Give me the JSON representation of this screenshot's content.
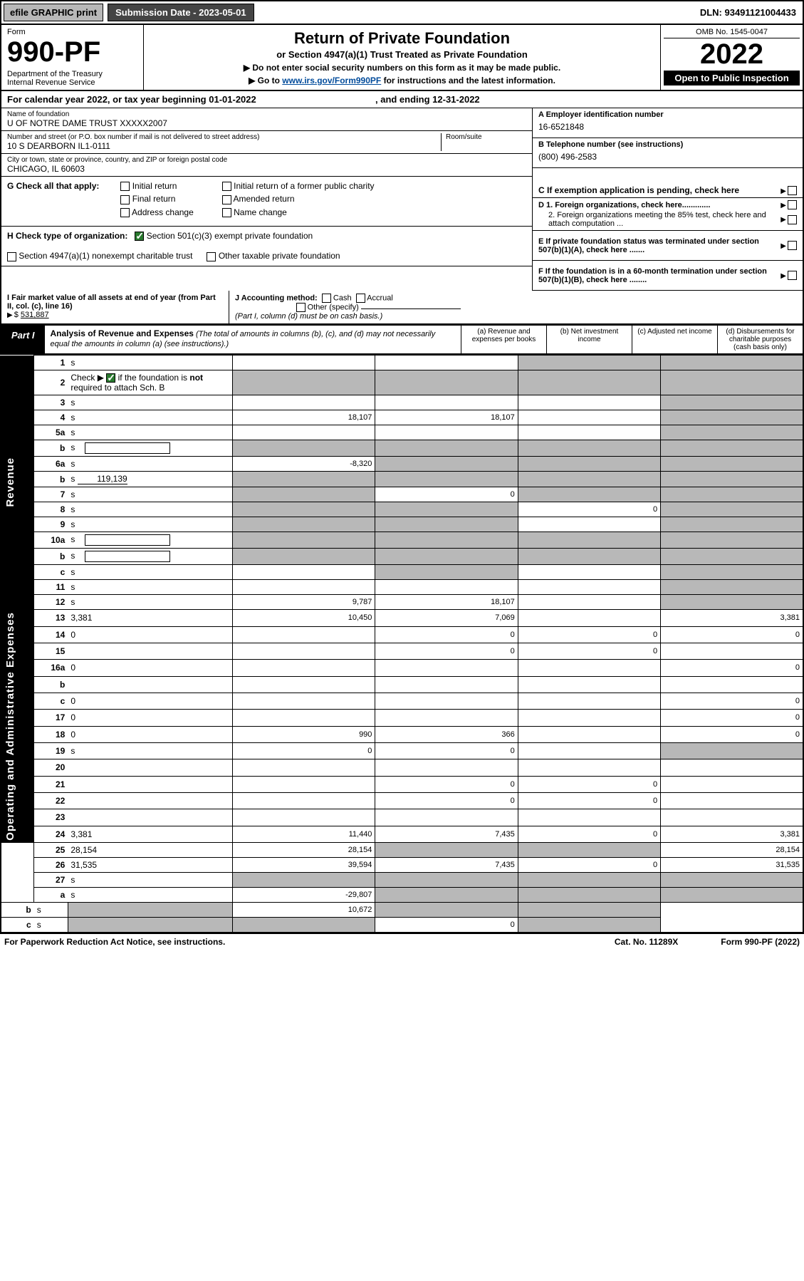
{
  "topbar": {
    "efile": "efile GRAPHIC print",
    "submission": "Submission Date - 2023-05-01",
    "dln": "DLN: 93491121004433"
  },
  "header": {
    "form_label": "Form",
    "form_number": "990-PF",
    "dept": "Department of the Treasury\nInternal Revenue Service",
    "title": "Return of Private Foundation",
    "subtitle": "or Section 4947(a)(1) Trust Treated as Private Foundation",
    "instr1": "▶ Do not enter social security numbers on this form as it may be made public.",
    "instr2_pre": "▶ Go to ",
    "instr2_link": "www.irs.gov/Form990PF",
    "instr2_post": " for instructions and the latest information.",
    "omb": "OMB No. 1545-0047",
    "year": "2022",
    "open": "Open to Public Inspection"
  },
  "calendar": {
    "text_pre": "For calendar year 2022, or tax year beginning ",
    "begin": "01-01-2022",
    "text_mid": " , and ending ",
    "end": "12-31-2022"
  },
  "entity": {
    "name_lbl": "Name of foundation",
    "name": "U OF NOTRE DAME TRUST XXXXX2007",
    "addr_lbl": "Number and street (or P.O. box number if mail is not delivered to street address)",
    "addr": "10 S DEARBORN IL1-0111",
    "room_lbl": "Room/suite",
    "city_lbl": "City or town, state or province, country, and ZIP or foreign postal code",
    "city": "CHICAGO, IL  60603",
    "ein_lbl": "A Employer identification number",
    "ein": "16-6521848",
    "tel_lbl": "B Telephone number (see instructions)",
    "tel": "(800) 496-2583",
    "c_lbl": "C If exemption application is pending, check here",
    "d1": "D 1. Foreign organizations, check here.............",
    "d2": "2. Foreign organizations meeting the 85% test, check here and attach computation ...",
    "e_lbl": "E   If private foundation status was terminated under section 507(b)(1)(A), check here .......",
    "f_lbl": "F   If the foundation is in a 60-month termination under section 507(b)(1)(B), check here ........"
  },
  "checks": {
    "g_lbl": "G Check all that apply:",
    "g_opts": [
      "Initial return",
      "Final return",
      "Address change",
      "Initial return of a former public charity",
      "Amended return",
      "Name change"
    ],
    "h_lbl": "H Check type of organization:",
    "h_opts": [
      "Section 501(c)(3) exempt private foundation",
      "Section 4947(a)(1) nonexempt charitable trust",
      "Other taxable private foundation"
    ],
    "i_lbl": "I Fair market value of all assets at end of year (from Part II, col. (c), line 16)",
    "i_val": "531,887",
    "j_lbl": "J Accounting method:",
    "j_opts": [
      "Cash",
      "Accrual",
      "Other (specify)"
    ],
    "j_note": "(Part I, column (d) must be on cash basis.)"
  },
  "part1": {
    "label": "Part I",
    "title": "Analysis of Revenue and Expenses",
    "note": " (The total of amounts in columns (b), (c), and (d) may not necessarily equal the amounts in column (a) (see instructions).)",
    "col_a": "(a)   Revenue and expenses per books",
    "col_b": "(b)   Net investment income",
    "col_c": "(c)   Adjusted net income",
    "col_d": "(d)   Disbursements for charitable purposes (cash basis only)"
  },
  "rows": [
    {
      "n": "1",
      "d": "s",
      "a": "",
      "b": "",
      "c": "s"
    },
    {
      "n": "2",
      "d_html": "Check ▶ [X] if the foundation is <b>not</b> required to attach Sch. B",
      "a": "s",
      "b": "s",
      "c": "s",
      "d": "s"
    },
    {
      "n": "3",
      "d": "s",
      "a": "",
      "b": "",
      "c": ""
    },
    {
      "n": "4",
      "d": "s",
      "a": "18,107",
      "b": "18,107",
      "c": ""
    },
    {
      "n": "5a",
      "d": "s",
      "a": "",
      "b": "",
      "c": ""
    },
    {
      "n": "b",
      "d": "s",
      "a": "s",
      "b": "s",
      "c": "s",
      "inset": true
    },
    {
      "n": "6a",
      "d": "s",
      "a": "-8,320",
      "b": "s",
      "c": "s"
    },
    {
      "n": "b",
      "d": "s",
      "inline_val": "119,139",
      "a": "s",
      "b": "s",
      "c": "s"
    },
    {
      "n": "7",
      "d": "s",
      "a": "s",
      "b": "0",
      "c": "s"
    },
    {
      "n": "8",
      "d": "s",
      "a": "s",
      "b": "s",
      "c": "0"
    },
    {
      "n": "9",
      "d": "s",
      "a": "s",
      "b": "s",
      "c": ""
    },
    {
      "n": "10a",
      "d": "s",
      "a": "s",
      "b": "s",
      "c": "s",
      "inset": true
    },
    {
      "n": "b",
      "d": "s",
      "a": "s",
      "b": "s",
      "c": "s",
      "inset": true
    },
    {
      "n": "c",
      "d": "s",
      "a": "",
      "b": "s",
      "c": ""
    },
    {
      "n": "11",
      "d": "s",
      "a": "",
      "b": "",
      "c": ""
    },
    {
      "n": "12",
      "d": "s",
      "a": "9,787",
      "b": "18,107",
      "c": ""
    },
    {
      "n": "13",
      "d": "3,381",
      "a": "10,450",
      "b": "7,069",
      "c": ""
    },
    {
      "n": "14",
      "d": "0",
      "a": "",
      "b": "0",
      "c": "0"
    },
    {
      "n": "15",
      "d": "",
      "a": "",
      "b": "0",
      "c": "0"
    },
    {
      "n": "16a",
      "d": "0",
      "a": "",
      "b": "",
      "c": ""
    },
    {
      "n": "b",
      "d": "",
      "a": "",
      "b": "",
      "c": ""
    },
    {
      "n": "c",
      "d": "0",
      "a": "",
      "b": "",
      "c": ""
    },
    {
      "n": "17",
      "d": "0",
      "a": "",
      "b": "",
      "c": ""
    },
    {
      "n": "18",
      "d": "0",
      "a": "990",
      "b": "366",
      "c": ""
    },
    {
      "n": "19",
      "d": "s",
      "a": "0",
      "b": "0",
      "c": ""
    },
    {
      "n": "20",
      "d": "",
      "a": "",
      "b": "",
      "c": ""
    },
    {
      "n": "21",
      "d": "",
      "a": "",
      "b": "0",
      "c": "0"
    },
    {
      "n": "22",
      "d": "",
      "a": "",
      "b": "0",
      "c": "0"
    },
    {
      "n": "23",
      "d": "",
      "a": "",
      "b": "",
      "c": ""
    },
    {
      "n": "24",
      "d": "3,381",
      "a": "11,440",
      "b": "7,435",
      "c": "0"
    },
    {
      "n": "25",
      "d": "28,154",
      "a": "28,154",
      "b": "s",
      "c": "s"
    },
    {
      "n": "26",
      "d": "31,535",
      "a": "39,594",
      "b": "7,435",
      "c": "0"
    },
    {
      "n": "27",
      "d": "s",
      "a": "s",
      "b": "s",
      "c": "s"
    },
    {
      "n": "a",
      "d": "s",
      "a": "-29,807",
      "b": "s",
      "c": "s"
    },
    {
      "n": "b",
      "d": "s",
      "a": "s",
      "b": "10,672",
      "c": "s"
    },
    {
      "n": "c",
      "d": "s",
      "a": "s",
      "b": "s",
      "c": "0"
    }
  ],
  "vlabels": {
    "rev": "Revenue",
    "exp": "Operating and Administrative Expenses"
  },
  "footer": {
    "left": "For Paperwork Reduction Act Notice, see instructions.",
    "mid": "Cat. No. 11289X",
    "right": "Form 990-PF (2022)"
  },
  "colors": {
    "shade": "#b8b8b8",
    "link": "#004b9b",
    "greencheck": "#2a7a2f"
  }
}
